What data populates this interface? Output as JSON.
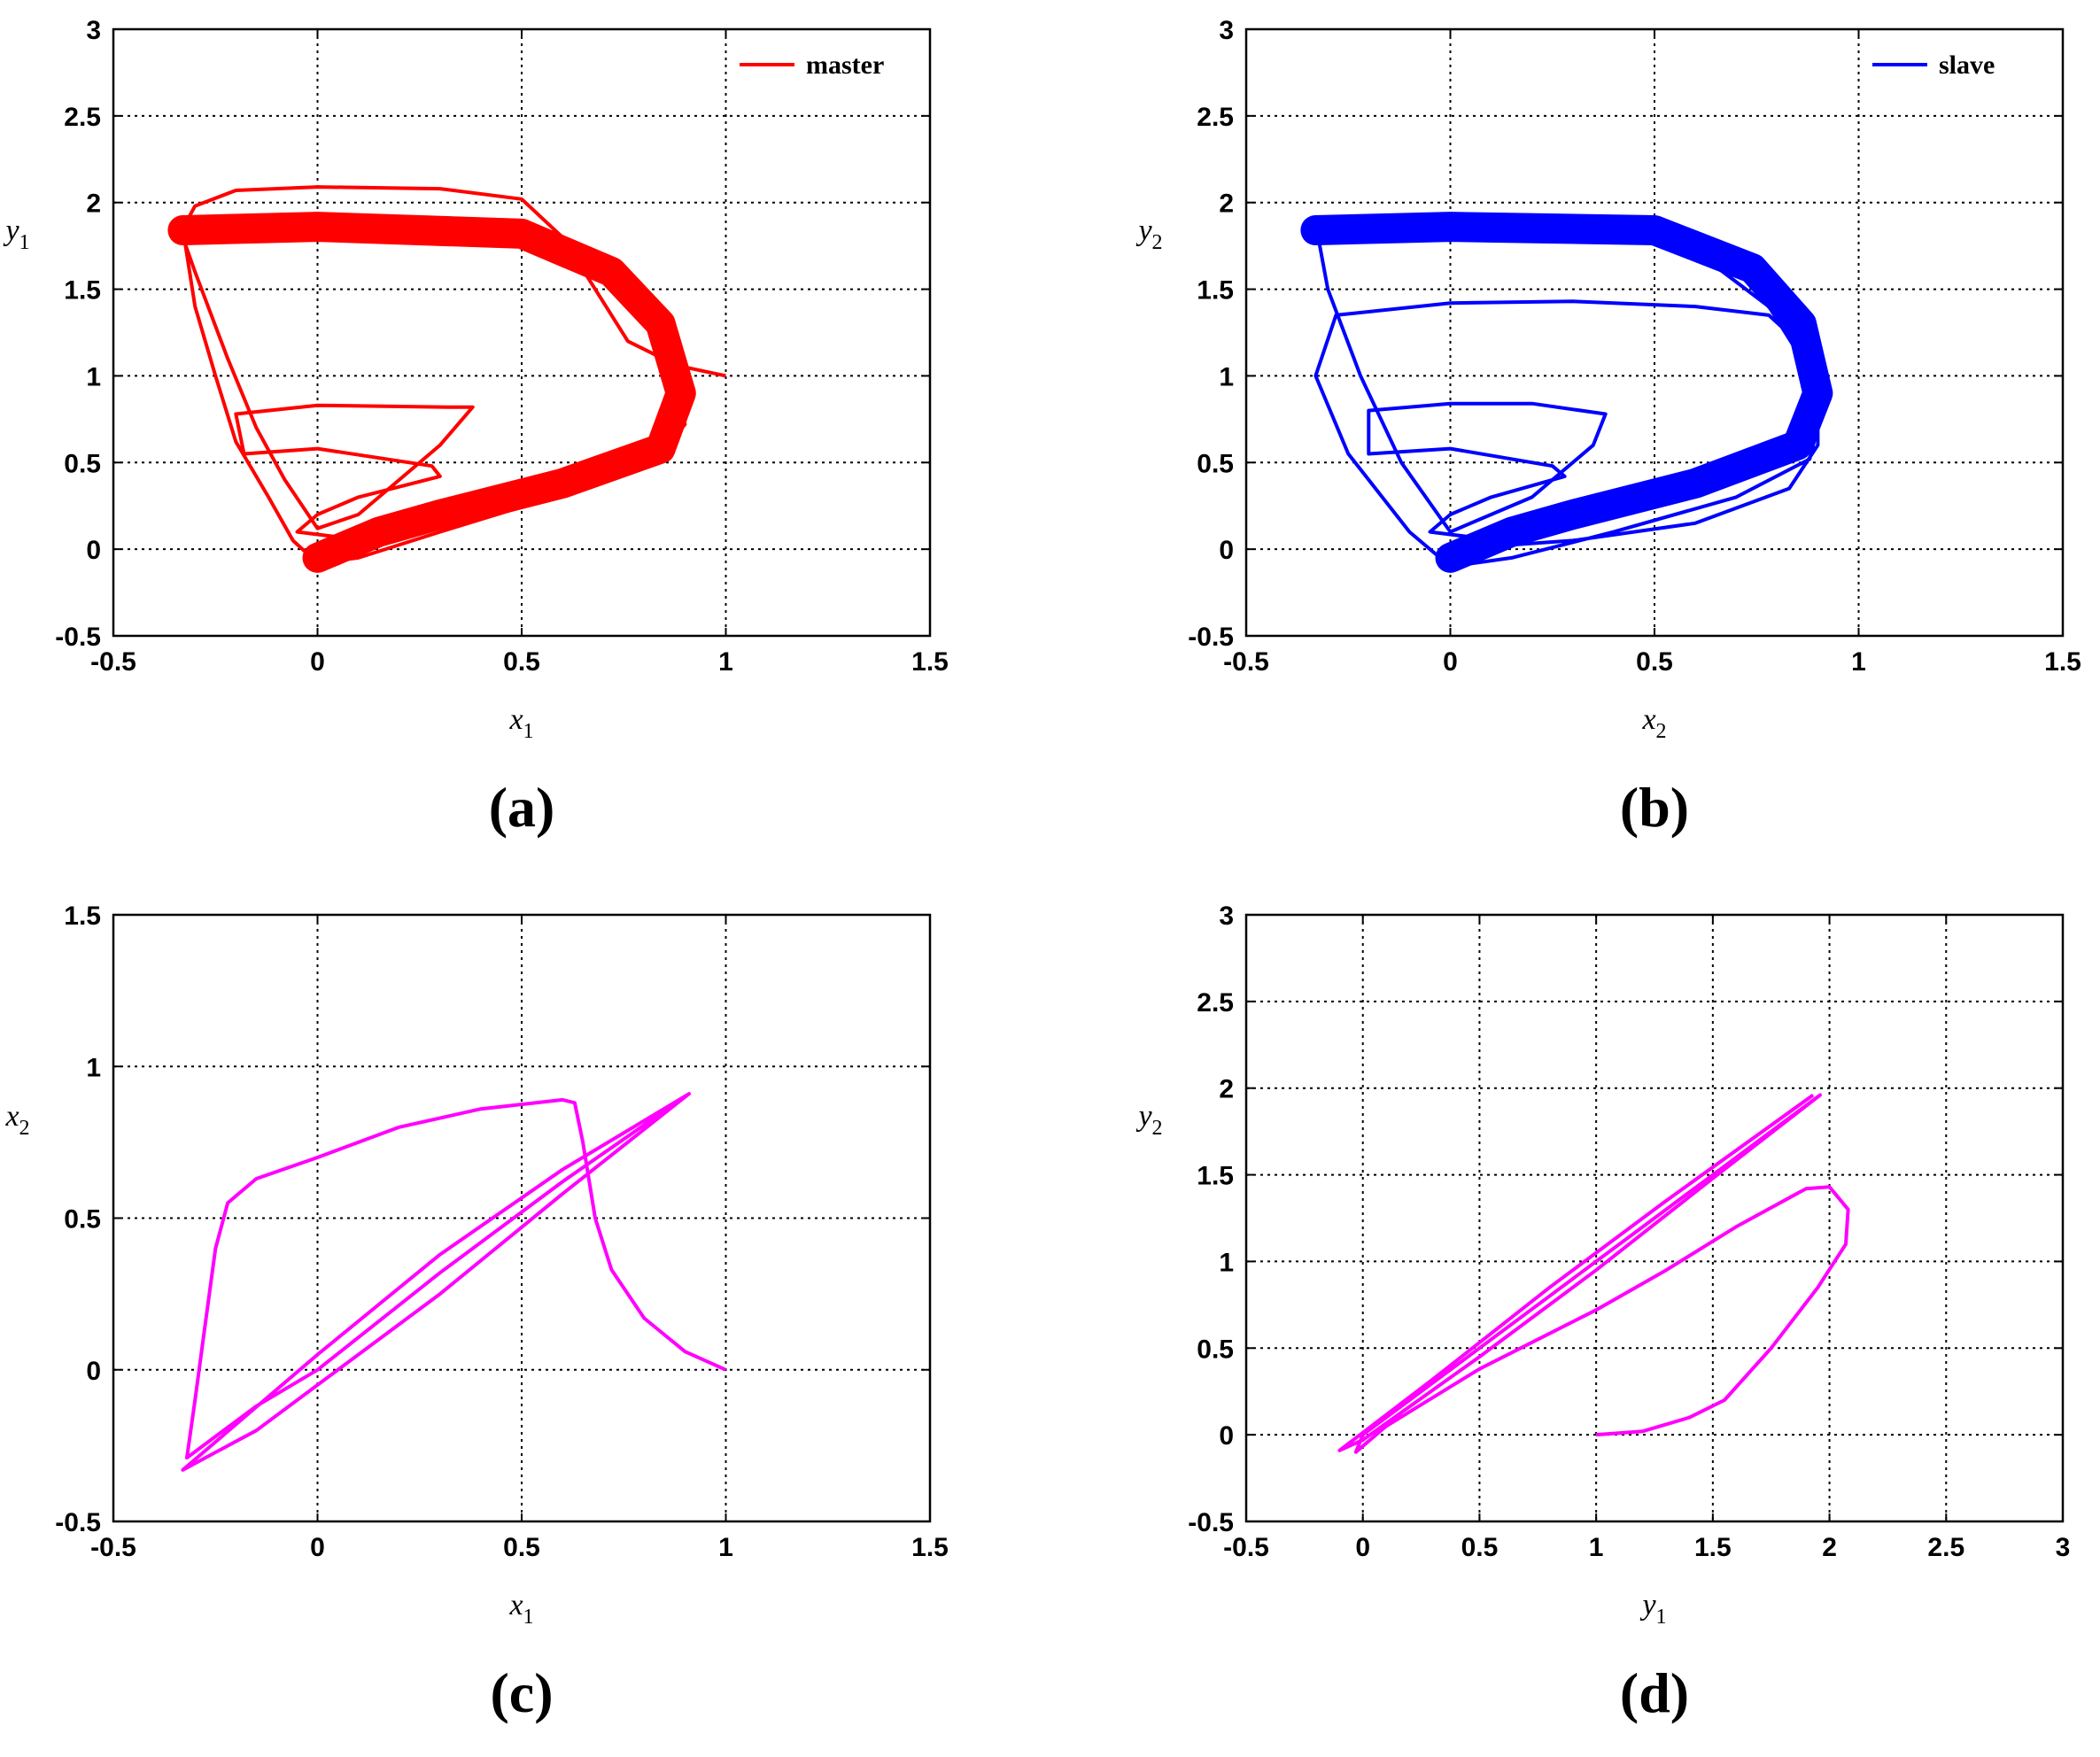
{
  "chart_data": [
    {
      "id": "a",
      "panel_label": "(a)",
      "type": "line",
      "xlabel": "x",
      "xlabel_sub": "1",
      "ylabel": "y",
      "ylabel_sub": "1",
      "xlim": [
        -0.5,
        1.5
      ],
      "ylim": [
        -0.5,
        3
      ],
      "xticks": [
        -0.5,
        0,
        0.5,
        1,
        1.5
      ],
      "xtick_labels": [
        "-0.5",
        "0",
        "0.5",
        "1",
        "1.5"
      ],
      "yticks": [
        -0.5,
        0,
        0.5,
        1,
        1.5,
        2,
        2.5,
        3
      ],
      "ytick_labels": [
        "-0.5",
        "0",
        "0.5",
        "1",
        "1.5",
        "2",
        "2.5",
        "3"
      ],
      "grid": true,
      "legend_position": "top-right",
      "series": [
        {
          "name": "master",
          "color": "#ff0000",
          "band": true,
          "outline": [
            [
              1.0,
              1.0
            ],
            [
              0.88,
              1.06
            ],
            [
              0.76,
              1.2
            ],
            [
              0.68,
              1.5
            ],
            [
              0.6,
              1.8
            ],
            [
              0.5,
              2.02
            ],
            [
              0.3,
              2.08
            ],
            [
              0.0,
              2.09
            ],
            [
              -0.2,
              2.07
            ],
            [
              -0.3,
              1.98
            ],
            [
              -0.33,
              1.85
            ],
            [
              -0.3,
              1.4
            ],
            [
              -0.25,
              1.0
            ],
            [
              -0.2,
              0.62
            ],
            [
              -0.12,
              0.3
            ],
            [
              -0.06,
              0.05
            ],
            [
              0.0,
              -0.08
            ],
            [
              0.1,
              -0.05
            ],
            [
              0.3,
              0.1
            ],
            [
              0.55,
              0.28
            ],
            [
              0.82,
              0.5
            ],
            [
              0.9,
              0.72
            ],
            [
              0.88,
              1.0
            ],
            [
              0.82,
              1.3
            ],
            [
              0.72,
              1.55
            ],
            [
              0.6,
              1.72
            ],
            [
              0.4,
              1.8
            ],
            [
              0.0,
              1.82
            ],
            [
              -0.33,
              1.8
            ],
            [
              -0.3,
              1.6
            ],
            [
              -0.22,
              1.1
            ],
            [
              -0.15,
              0.7
            ],
            [
              -0.08,
              0.4
            ],
            [
              0.0,
              0.12
            ],
            [
              0.1,
              0.2
            ],
            [
              0.2,
              0.4
            ],
            [
              0.3,
              0.6
            ],
            [
              0.38,
              0.82
            ],
            [
              0.32,
              0.82
            ],
            [
              0.0,
              0.83
            ],
            [
              -0.2,
              0.78
            ],
            [
              -0.18,
              0.55
            ],
            [
              0.0,
              0.58
            ],
            [
              0.28,
              0.48
            ],
            [
              0.3,
              0.42
            ],
            [
              0.1,
              0.3
            ],
            [
              0.0,
              0.2
            ],
            [
              -0.05,
              0.1
            ],
            [
              0.05,
              0.07
            ],
            [
              0.02,
              0.05
            ]
          ],
          "band_path": [
            [
              -0.33,
              1.84
            ],
            [
              0.0,
              1.86
            ],
            [
              0.5,
              1.82
            ],
            [
              0.72,
              1.6
            ],
            [
              0.84,
              1.3
            ],
            [
              0.89,
              0.9
            ],
            [
              0.84,
              0.58
            ],
            [
              0.6,
              0.38
            ],
            [
              0.3,
              0.2
            ],
            [
              0.15,
              0.1
            ],
            [
              0.0,
              -0.05
            ]
          ]
        }
      ]
    },
    {
      "id": "b",
      "panel_label": "(b)",
      "type": "line",
      "xlabel": "x",
      "xlabel_sub": "2",
      "ylabel": "y",
      "ylabel_sub": "2",
      "xlim": [
        -0.5,
        1.5
      ],
      "ylim": [
        -0.5,
        3
      ],
      "xticks": [
        -0.5,
        0,
        0.5,
        1,
        1.5
      ],
      "xtick_labels": [
        "-0.5",
        "0",
        "0.5",
        "1",
        "1.5"
      ],
      "yticks": [
        -0.5,
        0,
        0.5,
        1,
        1.5,
        2,
        2.5,
        3
      ],
      "ytick_labels": [
        "-0.5",
        "0",
        "0.5",
        "1",
        "1.5",
        "2",
        "2.5",
        "3"
      ],
      "grid": true,
      "legend_position": "top-right",
      "series": [
        {
          "name": "slave",
          "color": "#0000ff",
          "band": true,
          "outline": [
            [
              0.0,
              0.0
            ],
            [
              0.3,
              0.05
            ],
            [
              0.6,
              0.15
            ],
            [
              0.83,
              0.35
            ],
            [
              0.9,
              0.6
            ],
            [
              0.9,
              0.9
            ],
            [
              0.85,
              1.2
            ],
            [
              0.78,
              1.35
            ],
            [
              0.6,
              1.4
            ],
            [
              0.3,
              1.43
            ],
            [
              0.0,
              1.42
            ],
            [
              -0.28,
              1.35
            ],
            [
              -0.33,
              1.0
            ],
            [
              -0.25,
              0.55
            ],
            [
              -0.1,
              0.1
            ],
            [
              0.0,
              -0.1
            ],
            [
              0.15,
              -0.05
            ],
            [
              0.4,
              0.1
            ],
            [
              0.7,
              0.3
            ],
            [
              0.88,
              0.52
            ],
            [
              0.91,
              0.8
            ],
            [
              0.86,
              1.1
            ],
            [
              0.78,
              1.4
            ],
            [
              0.6,
              1.72
            ],
            [
              0.3,
              1.88
            ],
            [
              0.0,
              1.9
            ],
            [
              -0.33,
              1.88
            ],
            [
              -0.3,
              1.5
            ],
            [
              -0.22,
              1.0
            ],
            [
              -0.12,
              0.5
            ],
            [
              0.0,
              0.1
            ],
            [
              0.2,
              0.3
            ],
            [
              0.35,
              0.6
            ],
            [
              0.38,
              0.78
            ],
            [
              0.2,
              0.84
            ],
            [
              0.0,
              0.84
            ],
            [
              -0.2,
              0.8
            ],
            [
              -0.2,
              0.55
            ],
            [
              0.0,
              0.58
            ],
            [
              0.25,
              0.48
            ],
            [
              0.28,
              0.42
            ],
            [
              0.1,
              0.3
            ],
            [
              0.0,
              0.2
            ],
            [
              -0.05,
              0.1
            ],
            [
              0.05,
              0.07
            ],
            [
              0.02,
              0.05
            ]
          ],
          "band_path": [
            [
              -0.33,
              1.84
            ],
            [
              0.0,
              1.86
            ],
            [
              0.5,
              1.84
            ],
            [
              0.74,
              1.62
            ],
            [
              0.86,
              1.3
            ],
            [
              0.9,
              0.9
            ],
            [
              0.85,
              0.6
            ],
            [
              0.6,
              0.38
            ],
            [
              0.3,
              0.2
            ],
            [
              0.15,
              0.1
            ],
            [
              0.0,
              -0.05
            ]
          ]
        }
      ]
    },
    {
      "id": "c",
      "panel_label": "(c)",
      "type": "line",
      "xlabel": "x",
      "xlabel_sub": "1",
      "ylabel": "x",
      "ylabel_sub": "2",
      "xlim": [
        -0.5,
        1.5
      ],
      "ylim": [
        -0.5,
        1.5
      ],
      "xticks": [
        -0.5,
        0,
        0.5,
        1,
        1.5
      ],
      "xtick_labels": [
        "-0.5",
        "0",
        "0.5",
        "1",
        "1.5"
      ],
      "yticks": [
        -0.5,
        0,
        0.5,
        1,
        1.5
      ],
      "ytick_labels": [
        "-0.5",
        "0",
        "0.5",
        "1",
        "1.5"
      ],
      "grid": true,
      "legend_position": "none",
      "series": [
        {
          "color": "#ff00ff",
          "band": false,
          "outline": [
            [
              1.0,
              0.0
            ],
            [
              0.9,
              0.06
            ],
            [
              0.8,
              0.17
            ],
            [
              0.72,
              0.33
            ],
            [
              0.68,
              0.5
            ],
            [
              0.65,
              0.75
            ],
            [
              0.63,
              0.88
            ],
            [
              0.6,
              0.89
            ],
            [
              0.4,
              0.86
            ],
            [
              0.2,
              0.8
            ],
            [
              0.0,
              0.7
            ],
            [
              -0.15,
              0.63
            ],
            [
              -0.22,
              0.55
            ],
            [
              -0.25,
              0.4
            ],
            [
              -0.28,
              0.1
            ],
            [
              -0.3,
              -0.1
            ],
            [
              -0.32,
              -0.29
            ],
            [
              -0.15,
              -0.12
            ],
            [
              0.0,
              0.0
            ],
            [
              0.3,
              0.32
            ],
            [
              0.6,
              0.62
            ],
            [
              0.91,
              0.91
            ],
            [
              0.6,
              0.66
            ],
            [
              0.3,
              0.38
            ],
            [
              0.0,
              0.05
            ],
            [
              -0.33,
              -0.33
            ],
            [
              -0.15,
              -0.2
            ],
            [
              0.0,
              -0.05
            ],
            [
              0.3,
              0.25
            ],
            [
              0.6,
              0.58
            ],
            [
              0.91,
              0.91
            ]
          ]
        }
      ]
    },
    {
      "id": "d",
      "panel_label": "(d)",
      "type": "line",
      "xlabel": "y",
      "xlabel_sub": "1",
      "ylabel": "y",
      "ylabel_sub": "2",
      "xlim": [
        -0.5,
        3
      ],
      "ylim": [
        -0.5,
        3
      ],
      "xticks": [
        -0.5,
        0,
        0.5,
        1,
        1.5,
        2,
        2.5,
        3
      ],
      "xtick_labels": [
        "-0.5",
        "0",
        "0.5",
        "1",
        "1.5",
        "2",
        "2.5",
        "3"
      ],
      "yticks": [
        -0.5,
        0,
        0.5,
        1,
        1.5,
        2,
        2.5,
        3
      ],
      "ytick_labels": [
        "-0.5",
        "0",
        "0.5",
        "1",
        "1.5",
        "2",
        "2.5",
        "3"
      ],
      "grid": true,
      "legend_position": "none",
      "series": [
        {
          "color": "#ff00ff",
          "band": false,
          "outline": [
            [
              1.0,
              0.0
            ],
            [
              1.2,
              0.02
            ],
            [
              1.4,
              0.1
            ],
            [
              1.55,
              0.2
            ],
            [
              1.75,
              0.5
            ],
            [
              1.95,
              0.85
            ],
            [
              2.07,
              1.1
            ],
            [
              2.08,
              1.3
            ],
            [
              2.0,
              1.43
            ],
            [
              1.9,
              1.42
            ],
            [
              1.6,
              1.2
            ],
            [
              1.3,
              0.95
            ],
            [
              1.0,
              0.72
            ],
            [
              0.5,
              0.38
            ],
            [
              0.1,
              0.05
            ],
            [
              -0.03,
              -0.1
            ],
            [
              0.0,
              0.0
            ],
            [
              0.5,
              0.5
            ],
            [
              1.0,
              1.0
            ],
            [
              1.5,
              1.5
            ],
            [
              1.96,
              1.96
            ],
            [
              1.5,
              1.48
            ],
            [
              1.0,
              0.95
            ],
            [
              0.5,
              0.45
            ],
            [
              0.0,
              -0.03
            ],
            [
              -0.1,
              -0.09
            ],
            [
              0.3,
              0.32
            ],
            [
              0.8,
              0.85
            ],
            [
              1.3,
              1.35
            ],
            [
              1.93,
              1.96
            ]
          ]
        }
      ]
    }
  ]
}
